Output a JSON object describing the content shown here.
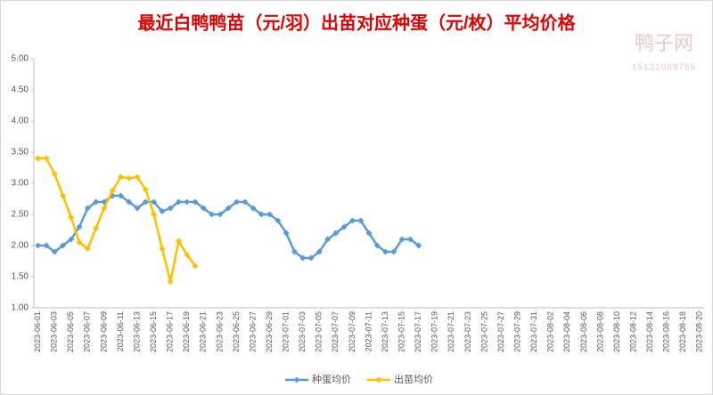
{
  "chart_data": {
    "type": "line",
    "title": "最近白鸭鸭苗（元/羽）出苗对应种蛋（元/枚）平均价格",
    "watermark": "鸭子网",
    "watermark_phone": "15131069765",
    "categories": [
      "2023-06-01",
      null,
      "2023-06-03",
      null,
      "2023-06-05",
      null,
      "2023-06-07",
      null,
      "2023-06-09",
      null,
      "2023-06-11",
      null,
      "2023-06-13",
      null,
      "2023-06-15",
      null,
      "2023-06-17",
      null,
      "2023-06-19",
      null,
      "2023-06-21",
      null,
      "2023-06-23",
      null,
      "2023-06-25",
      null,
      "2023-06-27",
      null,
      "2023-06-29",
      null,
      "2023-07-01",
      null,
      "2023-07-03",
      null,
      "2023-07-05",
      null,
      "2023-07-07",
      null,
      "2023-07-09",
      null,
      "2023-07-11",
      null,
      "2023-07-13",
      null,
      "2023-07-15",
      null,
      "2023-07-17",
      null,
      "2023-07-19",
      null,
      "2023-07-21",
      null,
      "2023-07-23",
      null,
      "2023-07-25",
      null,
      "2023-07-27",
      null,
      "2023-07-29",
      null,
      "2023-07-31",
      null,
      "2023-08-02",
      null,
      "2023-08-04",
      null,
      "2023-08-06",
      null,
      "2023-08-08",
      null,
      "2023-08-10",
      null,
      "2023-08-12",
      null,
      "2023-08-14",
      null,
      "2023-08-16",
      null,
      "2023-08-18",
      null,
      "2023-08-20"
    ],
    "series": [
      {
        "name": "种蛋均价",
        "color": "#5b9bd5",
        "values": [
          2.0,
          2.0,
          1.9,
          2.0,
          2.1,
          2.3,
          2.6,
          2.7,
          2.7,
          2.8,
          2.8,
          2.7,
          2.6,
          2.7,
          2.7,
          2.55,
          2.6,
          2.7,
          2.7,
          2.7,
          2.6,
          2.5,
          2.5,
          2.6,
          2.7,
          2.7,
          2.6,
          2.5,
          2.5,
          2.4,
          2.2,
          1.9,
          1.8,
          1.8,
          1.9,
          2.1,
          2.2,
          2.3,
          2.4,
          2.4,
          2.2,
          2.0,
          1.9,
          1.9,
          2.1,
          2.1,
          2.0,
          null,
          null,
          null,
          null,
          null,
          null,
          null,
          null,
          null,
          null,
          null,
          null,
          null,
          null,
          null,
          null,
          null,
          null,
          null,
          null,
          null,
          null,
          null,
          null,
          null,
          null,
          null,
          null,
          null,
          null,
          null,
          null,
          null,
          null
        ]
      },
      {
        "name": "出苗均价",
        "color": "#ffc000",
        "values": [
          3.4,
          3.4,
          3.15,
          2.8,
          2.45,
          2.05,
          1.95,
          2.28,
          2.6,
          2.88,
          3.1,
          3.08,
          3.1,
          2.9,
          2.5,
          1.95,
          1.42,
          2.07,
          1.85,
          1.67,
          null,
          null,
          null,
          null,
          null,
          null,
          null,
          null,
          null,
          null,
          null,
          null,
          null,
          null,
          null,
          null,
          null,
          null,
          null,
          null,
          null,
          null,
          null,
          null,
          null,
          null,
          null,
          null,
          null,
          null,
          null,
          null,
          null,
          null,
          null,
          null,
          null,
          null,
          null,
          null,
          null,
          null,
          null,
          null,
          null,
          null,
          null,
          null,
          null,
          null,
          null,
          null,
          null,
          null,
          null,
          null,
          null,
          null,
          null,
          null,
          null
        ]
      }
    ],
    "ylim": [
      1,
      5
    ],
    "yticks": [
      {
        "value": 1,
        "label": "1.00"
      },
      {
        "value": 1.5,
        "label": "1.50"
      },
      {
        "value": 2,
        "label": "2.00"
      },
      {
        "value": 2.5,
        "label": "2.50"
      },
      {
        "value": 3,
        "label": "3.00"
      },
      {
        "value": 3.5,
        "label": "3.50"
      },
      {
        "value": 4,
        "label": "4.00"
      },
      {
        "value": 4.5,
        "label": "4.50"
      },
      {
        "value": 5,
        "label": "5.00"
      }
    ],
    "grid": false,
    "legend": "bottom"
  }
}
